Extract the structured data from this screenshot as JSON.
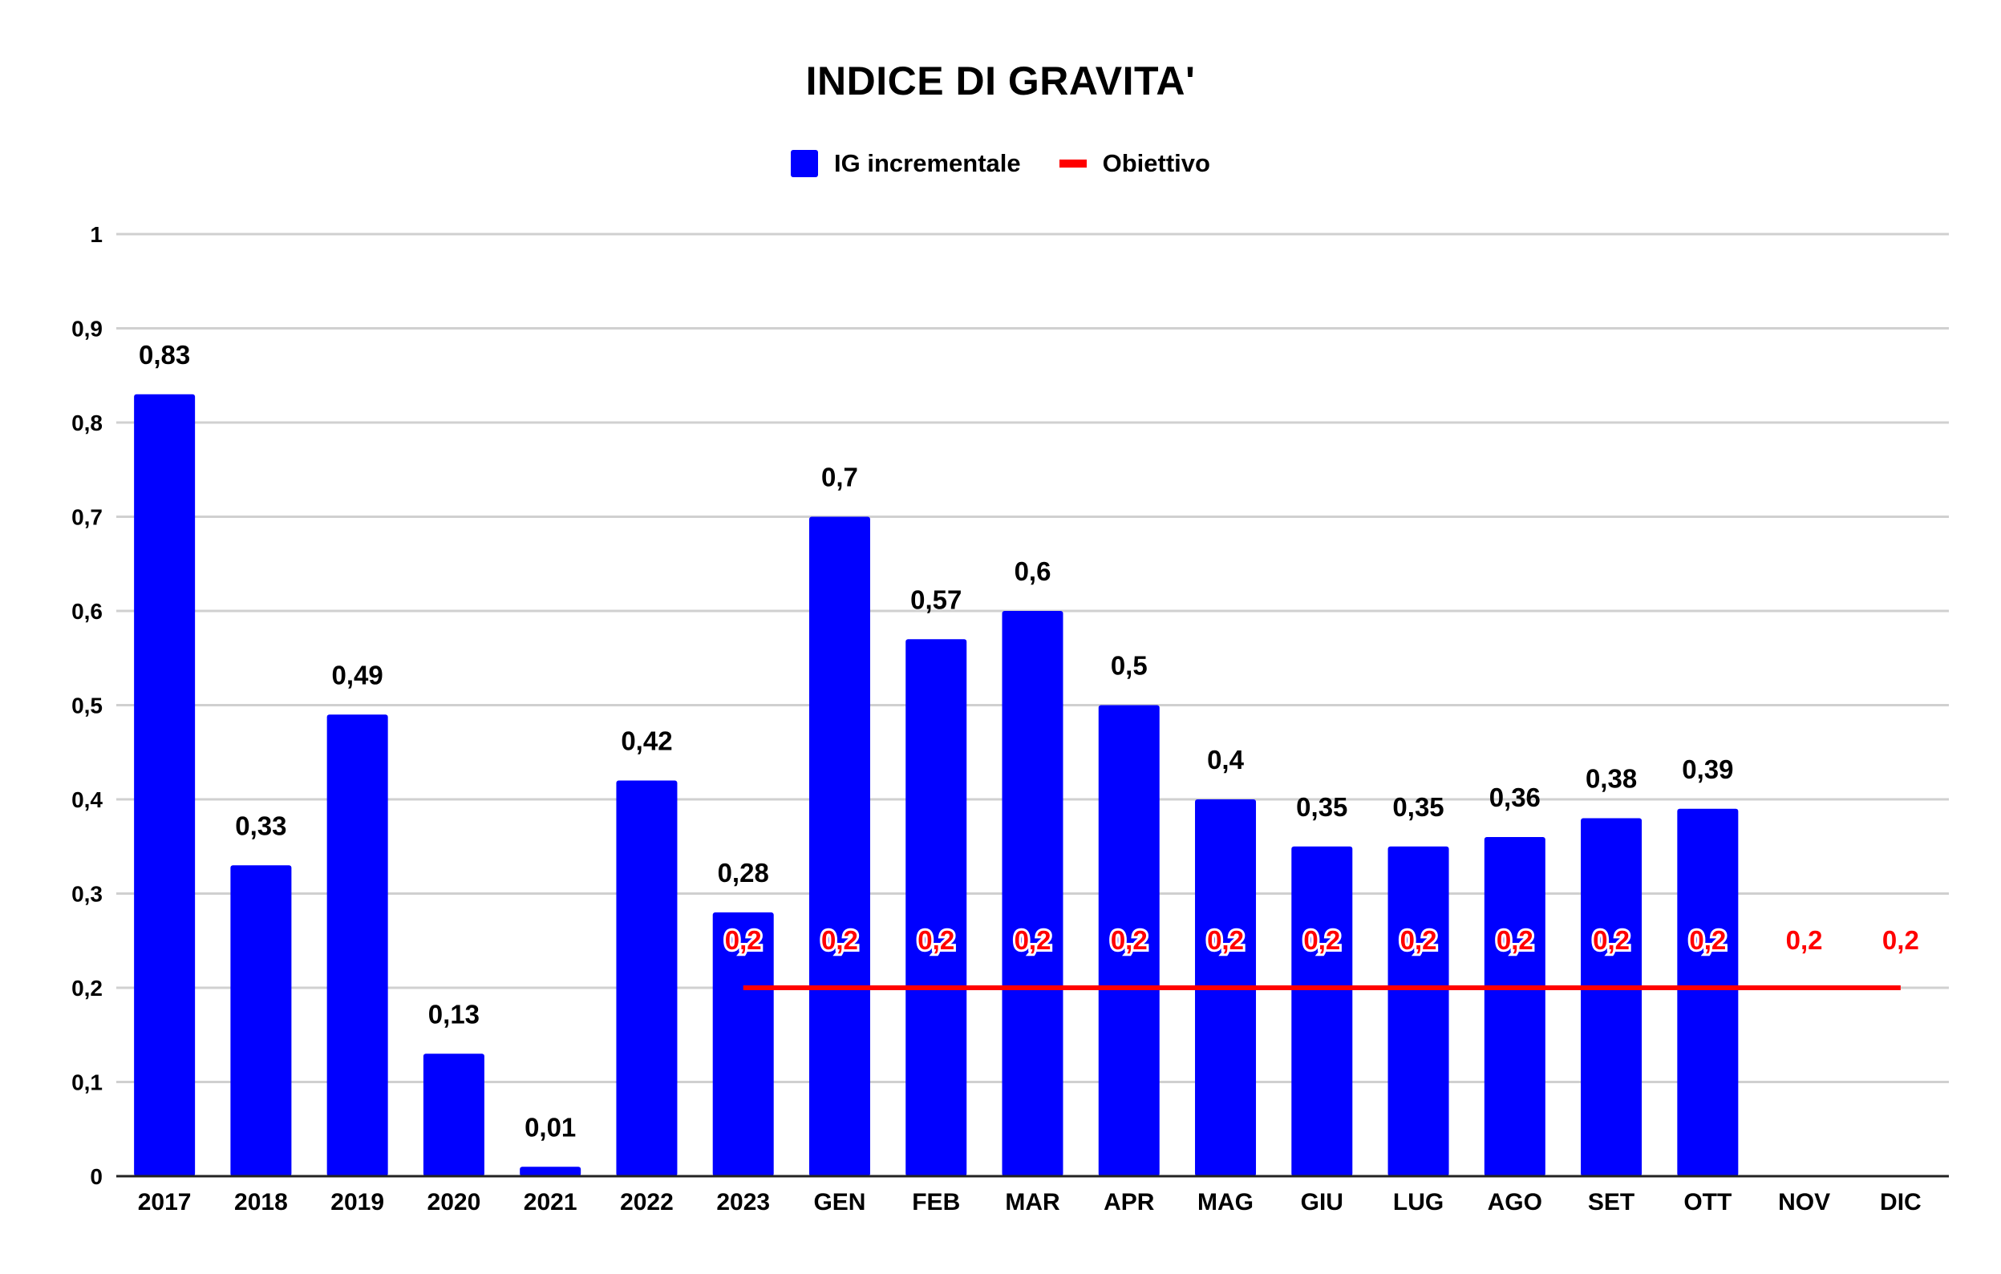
{
  "chart_data": {
    "type": "bar",
    "title": "INDICE DI GRAVITA'",
    "categories": [
      "2017",
      "2018",
      "2019",
      "2020",
      "2021",
      "2022",
      "2023",
      "GEN",
      "FEB",
      "MAR",
      "APR",
      "MAG",
      "GIU",
      "LUG",
      "AGO",
      "SET",
      "OTT",
      "NOV",
      "DIC"
    ],
    "series": [
      {
        "name": "IG incrementale",
        "kind": "bar",
        "color": "#0000ff",
        "values": [
          0.83,
          0.33,
          0.49,
          0.13,
          0.01,
          0.42,
          0.28,
          0.7,
          0.57,
          0.6,
          0.5,
          0.4,
          0.35,
          0.35,
          0.36,
          0.38,
          0.39,
          null,
          null
        ],
        "labels": [
          "0,83",
          "0,33",
          "0,49",
          "0,13",
          "0,01",
          "0,42",
          "0,28",
          "0,7",
          "0,57",
          "0,6",
          "0,5",
          "0,4",
          "0,35",
          "0,35",
          "0,36",
          "0,38",
          "0,39",
          "",
          ""
        ]
      },
      {
        "name": "Obiettivo",
        "kind": "line",
        "color": "#ff0000",
        "values": [
          null,
          null,
          null,
          null,
          null,
          null,
          0.2,
          0.2,
          0.2,
          0.2,
          0.2,
          0.2,
          0.2,
          0.2,
          0.2,
          0.2,
          0.2,
          0.2,
          0.2
        ],
        "labels": [
          "",
          "",
          "",
          "",
          "",
          "",
          "0,2",
          "0,2",
          "0,2",
          "0,2",
          "0,2",
          "0,2",
          "0,2",
          "0,2",
          "0,2",
          "0,2",
          "0,2",
          "0,2",
          "0,2"
        ]
      }
    ],
    "ylim": [
      0,
      1
    ],
    "yticks": [
      0,
      0.1,
      0.2,
      0.3,
      0.4,
      0.5,
      0.6,
      0.7,
      0.8,
      0.9,
      1
    ],
    "ytick_labels": [
      "0",
      "0,1",
      "0,2",
      "0,3",
      "0,4",
      "0,5",
      "0,6",
      "0,7",
      "0,8",
      "0,9",
      "1"
    ],
    "grid": true,
    "legend_position": "top-center",
    "xlabel": "",
    "ylabel": ""
  }
}
